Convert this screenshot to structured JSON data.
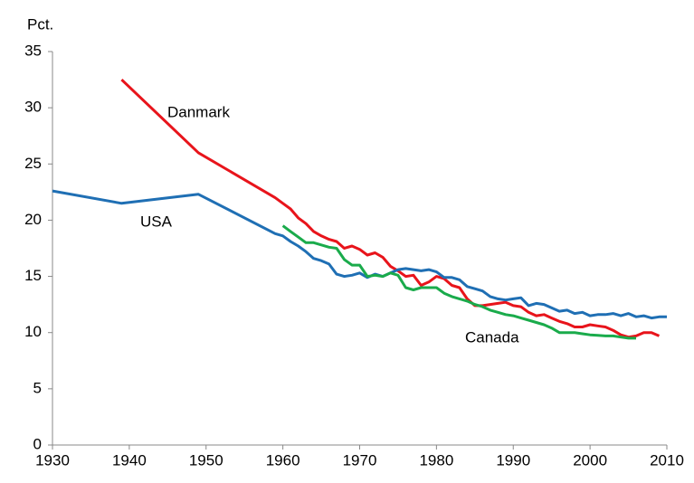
{
  "chart_data": {
    "type": "line",
    "y_label": "Pct.",
    "xlim": [
      1930,
      2010
    ],
    "xticks": [
      1930,
      1940,
      1950,
      1960,
      1970,
      1980,
      1990,
      2000,
      2010
    ],
    "ylim": [
      0,
      35
    ],
    "yticks": [
      0,
      5,
      10,
      15,
      20,
      25,
      30,
      35
    ],
    "grid": false,
    "series": [
      {
        "name": "Danmark",
        "color": "#e8141b",
        "x": [
          1939,
          1949,
          1959,
          1960,
          1961,
          1962,
          1963,
          1964,
          1965,
          1966,
          1967,
          1968,
          1969,
          1970,
          1971,
          1972,
          1973,
          1974,
          1975,
          1976,
          1977,
          1978,
          1979,
          1980,
          1981,
          1982,
          1983,
          1984,
          1985,
          1986,
          1987,
          1988,
          1989,
          1990,
          1991,
          1992,
          1993,
          1994,
          1995,
          1996,
          1997,
          1998,
          1999,
          2000,
          2001,
          2002,
          2003,
          2004,
          2005,
          2006,
          2007,
          2008,
          2009
        ],
        "values": [
          32.5,
          26.0,
          22.0,
          21.5,
          21.0,
          20.2,
          19.7,
          19.0,
          18.6,
          18.3,
          18.1,
          17.5,
          17.7,
          17.4,
          16.9,
          17.1,
          16.7,
          15.9,
          15.5,
          15.0,
          15.1,
          14.2,
          14.5,
          15.0,
          14.8,
          14.2,
          14.0,
          13.0,
          12.4,
          12.4,
          12.5,
          12.6,
          12.7,
          12.4,
          12.3,
          11.8,
          11.5,
          11.6,
          11.3,
          11.0,
          10.8,
          10.5,
          10.5,
          10.7,
          10.6,
          10.5,
          10.2,
          9.8,
          9.6,
          9.7,
          10.0,
          10.0,
          9.7
        ]
      },
      {
        "name": "USA",
        "color": "#1f6fb4",
        "x": [
          1930,
          1939,
          1949,
          1959,
          1960,
          1961,
          1962,
          1963,
          1964,
          1965,
          1966,
          1967,
          1968,
          1969,
          1970,
          1971,
          1972,
          1973,
          1974,
          1975,
          1976,
          1977,
          1978,
          1979,
          1980,
          1981,
          1982,
          1983,
          1984,
          1985,
          1986,
          1987,
          1988,
          1989,
          1990,
          1991,
          1992,
          1993,
          1994,
          1995,
          1996,
          1997,
          1998,
          1999,
          2000,
          2001,
          2002,
          2003,
          2004,
          2005,
          2006,
          2007,
          2008,
          2009,
          2010
        ],
        "values": [
          22.6,
          21.5,
          22.3,
          18.8,
          18.6,
          18.1,
          17.7,
          17.2,
          16.6,
          16.4,
          16.1,
          15.2,
          15.0,
          15.1,
          15.3,
          14.9,
          15.2,
          15.0,
          15.3,
          15.6,
          15.7,
          15.6,
          15.5,
          15.6,
          15.4,
          14.9,
          14.9,
          14.7,
          14.1,
          13.9,
          13.7,
          13.2,
          13.0,
          12.9,
          13.0,
          13.1,
          12.4,
          12.6,
          12.5,
          12.2,
          11.9,
          12.0,
          11.7,
          11.8,
          11.5,
          11.6,
          11.6,
          11.7,
          11.5,
          11.7,
          11.4,
          11.5,
          11.3,
          11.4,
          11.4
        ]
      },
      {
        "name": "Canada",
        "color": "#1aab4b",
        "x": [
          1960,
          1961,
          1962,
          1963,
          1964,
          1965,
          1966,
          1967,
          1968,
          1969,
          1970,
          1971,
          1972,
          1973,
          1974,
          1975,
          1976,
          1977,
          1978,
          1979,
          1980,
          1981,
          1982,
          1983,
          1984,
          1985,
          1986,
          1987,
          1988,
          1989,
          1990,
          1991,
          1992,
          1993,
          1994,
          1995,
          1996,
          1997,
          1998,
          1999,
          2000,
          2001,
          2002,
          2003,
          2004,
          2005,
          2006
        ],
        "values": [
          19.5,
          19.0,
          18.5,
          18.0,
          18.0,
          17.8,
          17.6,
          17.5,
          16.5,
          16.0,
          16.0,
          15.0,
          15.1,
          15.0,
          15.3,
          15.1,
          14.0,
          13.8,
          14.0,
          14.0,
          14.0,
          13.5,
          13.2,
          13.0,
          12.8,
          12.5,
          12.3,
          12.0,
          11.8,
          11.6,
          11.5,
          11.3,
          11.1,
          10.9,
          10.7,
          10.4,
          10.0,
          10.0,
          10.0,
          9.9,
          9.8,
          9.75,
          9.7,
          9.7,
          9.6,
          9.5,
          9.5
        ]
      }
    ]
  }
}
